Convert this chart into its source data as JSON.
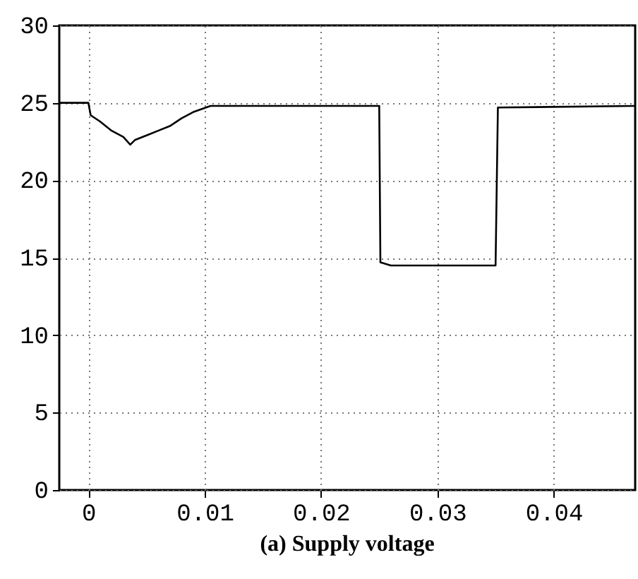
{
  "chart_data": {
    "type": "line",
    "title": "(a) Supply voltage",
    "x": [
      -0.0025,
      0,
      0.0002,
      0.001,
      0.002,
      0.003,
      0.0036,
      0.004,
      0.005,
      0.006,
      0.007,
      0.008,
      0.009,
      0.0105,
      0.025,
      0.0251,
      0.026,
      0.035,
      0.0352,
      0.047
    ],
    "series": [
      {
        "color": "#000000",
        "values": [
          25,
          25,
          24.2,
          23.8,
          23.2,
          22.8,
          22.3,
          22.6,
          22.9,
          23.2,
          23.5,
          24.0,
          24.4,
          24.8,
          24.8,
          14.7,
          14.5,
          14.5,
          24.7,
          24.8
        ]
      }
    ],
    "xlim": [
      -0.0025,
      0.047
    ],
    "xticks": [
      0,
      0.01,
      0.02,
      0.03,
      0.04
    ],
    "ylim": [
      0,
      30
    ],
    "yticks": [
      0,
      5,
      10,
      15,
      20,
      25,
      30
    ],
    "grid": true,
    "marker": "none",
    "line_style": "solid"
  }
}
